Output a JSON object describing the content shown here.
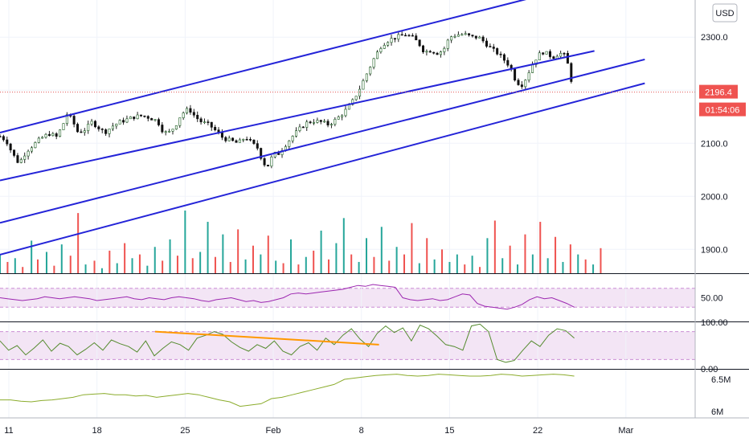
{
  "currency_label": "USD",
  "chart_data": [
    {
      "type": "line",
      "name": "price-pane",
      "y_unit": "USD",
      "ylim": [
        1855,
        2370
      ],
      "y_ticks": [
        "2300.0",
        "2200.0",
        "2100.0",
        "2000.0",
        "1900.0"
      ],
      "y_tick_values": [
        2300,
        2200,
        2100,
        2000,
        1900
      ],
      "last_price_label": "2196.4",
      "last_price": 2196.4,
      "countdown_label": "01:54:06",
      "x_ticks": [
        "11",
        "18",
        "25",
        "Feb",
        "8",
        "15",
        "22",
        "Mar"
      ],
      "x_tick_days": [
        11,
        18,
        25,
        32,
        39,
        46,
        53,
        60
      ],
      "x_days_range": [
        10.3,
        65.5
      ],
      "price_path": [
        [
          10.3,
          2113
        ],
        [
          10.8,
          2105
        ],
        [
          11.3,
          2080
        ],
        [
          11.8,
          2062
        ],
        [
          12.4,
          2085
        ],
        [
          13.0,
          2098
        ],
        [
          13.6,
          2110
        ],
        [
          14.2,
          2118
        ],
        [
          14.8,
          2112
        ],
        [
          15.3,
          2135
        ],
        [
          15.6,
          2155
        ],
        [
          16.0,
          2145
        ],
        [
          16.5,
          2120
        ],
        [
          17.0,
          2125
        ],
        [
          17.6,
          2140
        ],
        [
          18.1,
          2130
        ],
        [
          18.6,
          2120
        ],
        [
          19.2,
          2132
        ],
        [
          19.8,
          2140
        ],
        [
          20.4,
          2145
        ],
        [
          21.0,
          2150
        ],
        [
          21.6,
          2152
        ],
        [
          22.2,
          2148
        ],
        [
          22.8,
          2142
        ],
        [
          23.3,
          2120
        ],
        [
          23.7,
          2120
        ],
        [
          24.2,
          2132
        ],
        [
          24.7,
          2155
        ],
        [
          25.3,
          2165
        ],
        [
          25.8,
          2150
        ],
        [
          26.3,
          2140
        ],
        [
          26.9,
          2135
        ],
        [
          27.5,
          2122
        ],
        [
          28.0,
          2110
        ],
        [
          28.6,
          2105
        ],
        [
          29.2,
          2100
        ],
        [
          29.8,
          2112
        ],
        [
          30.3,
          2100
        ],
        [
          30.8,
          2090
        ],
        [
          31.2,
          2062
        ],
        [
          31.6,
          2058
        ],
        [
          32.0,
          2080
        ],
        [
          32.4,
          2080
        ],
        [
          32.8,
          2092
        ],
        [
          33.4,
          2110
        ],
        [
          34.0,
          2125
        ],
        [
          34.6,
          2138
        ],
        [
          35.2,
          2142
        ],
        [
          35.8,
          2140
        ],
        [
          36.4,
          2135
        ],
        [
          37.0,
          2145
        ],
        [
          37.6,
          2158
        ],
        [
          38.2,
          2175
        ],
        [
          38.8,
          2200
        ],
        [
          39.4,
          2230
        ],
        [
          40.0,
          2260
        ],
        [
          40.6,
          2285
        ],
        [
          41.2,
          2295
        ],
        [
          41.8,
          2300
        ],
        [
          42.5,
          2305
        ],
        [
          43.0,
          2300
        ],
        [
          43.5,
          2290
        ],
        [
          44.0,
          2272
        ],
        [
          44.5,
          2275
        ],
        [
          45.0,
          2270
        ],
        [
          45.5,
          2275
        ],
        [
          46.0,
          2300
        ],
        [
          46.6,
          2305
        ],
        [
          47.2,
          2305
        ],
        [
          47.8,
          2300
        ],
        [
          48.3,
          2300
        ],
        [
          48.8,
          2290
        ],
        [
          49.3,
          2278
        ],
        [
          49.8,
          2270
        ],
        [
          50.3,
          2258
        ],
        [
          50.8,
          2245
        ],
        [
          51.3,
          2215
        ],
        [
          51.8,
          2210
        ],
        [
          52.2,
          2230
        ],
        [
          52.6,
          2250
        ],
        [
          53.0,
          2265
        ],
        [
          53.4,
          2272
        ],
        [
          53.8,
          2268
        ],
        [
          54.2,
          2262
        ],
        [
          54.6,
          2268
        ],
        [
          55.0,
          2270
        ],
        [
          55.3,
          2258
        ],
        [
          55.6,
          2225
        ],
        [
          55.9,
          2196
        ]
      ],
      "candle_width_days": 0.28,
      "channel_lines": [
        {
          "p1": [
            10.3,
            2120
          ],
          "p2": [
            53.5,
            2380
          ]
        },
        {
          "p1": [
            10.3,
            2030
          ],
          "p2": [
            57.5,
            2274
          ]
        },
        {
          "p1": [
            10.3,
            1950
          ],
          "p2": [
            61.5,
            2258
          ]
        },
        {
          "p1": [
            10.3,
            1890
          ],
          "p2": [
            61.5,
            2213
          ]
        }
      ],
      "channel_color": "#2424d8",
      "price_line_color": "#e05555"
    },
    {
      "type": "bar",
      "name": "volume-pane",
      "volume_max": 100,
      "volume_bars": [
        [
          10.3,
          30,
          "up"
        ],
        [
          10.9,
          18,
          "down"
        ],
        [
          11.5,
          24,
          "up"
        ],
        [
          12.1,
          10,
          "down"
        ],
        [
          12.8,
          52,
          "up"
        ],
        [
          13.3,
          22,
          "down"
        ],
        [
          14.0,
          34,
          "up"
        ],
        [
          14.6,
          12,
          "down"
        ],
        [
          15.2,
          46,
          "up"
        ],
        [
          15.9,
          28,
          "down"
        ],
        [
          16.5,
          96,
          "down"
        ],
        [
          17.1,
          14,
          "up"
        ],
        [
          17.8,
          20,
          "down"
        ],
        [
          18.4,
          8,
          "up"
        ],
        [
          19.0,
          36,
          "down"
        ],
        [
          19.6,
          16,
          "up"
        ],
        [
          20.2,
          48,
          "down"
        ],
        [
          20.8,
          24,
          "up"
        ],
        [
          21.4,
          30,
          "down"
        ],
        [
          22.0,
          12,
          "up"
        ],
        [
          22.6,
          42,
          "up"
        ],
        [
          23.2,
          20,
          "down"
        ],
        [
          23.8,
          54,
          "up"
        ],
        [
          24.4,
          28,
          "down"
        ],
        [
          25.0,
          100,
          "up"
        ],
        [
          25.6,
          24,
          "down"
        ],
        [
          26.2,
          34,
          "up"
        ],
        [
          26.8,
          82,
          "up"
        ],
        [
          27.4,
          26,
          "down"
        ],
        [
          28.0,
          62,
          "up"
        ],
        [
          28.6,
          18,
          "down"
        ],
        [
          29.2,
          70,
          "down"
        ],
        [
          29.8,
          22,
          "up"
        ],
        [
          30.4,
          44,
          "down"
        ],
        [
          31.0,
          30,
          "up"
        ],
        [
          31.6,
          60,
          "down"
        ],
        [
          32.2,
          20,
          "up"
        ],
        [
          32.8,
          16,
          "down"
        ],
        [
          33.4,
          54,
          "up"
        ],
        [
          34.0,
          14,
          "down"
        ],
        [
          34.6,
          26,
          "up"
        ],
        [
          35.2,
          36,
          "down"
        ],
        [
          35.8,
          68,
          "up"
        ],
        [
          36.4,
          22,
          "down"
        ],
        [
          37.0,
          48,
          "up"
        ],
        [
          37.6,
          88,
          "up"
        ],
        [
          38.2,
          30,
          "down"
        ],
        [
          38.8,
          18,
          "up"
        ],
        [
          39.4,
          56,
          "up"
        ],
        [
          40.0,
          26,
          "down"
        ],
        [
          40.6,
          74,
          "up"
        ],
        [
          41.2,
          20,
          "down"
        ],
        [
          41.8,
          42,
          "up"
        ],
        [
          42.4,
          30,
          "down"
        ],
        [
          43.0,
          80,
          "down"
        ],
        [
          43.6,
          16,
          "up"
        ],
        [
          44.2,
          56,
          "down"
        ],
        [
          44.8,
          22,
          "up"
        ],
        [
          45.4,
          38,
          "down"
        ],
        [
          46.0,
          18,
          "up"
        ],
        [
          46.6,
          30,
          "up"
        ],
        [
          47.2,
          14,
          "down"
        ],
        [
          47.8,
          28,
          "up"
        ],
        [
          48.4,
          10,
          "down"
        ],
        [
          49.0,
          56,
          "up"
        ],
        [
          49.6,
          84,
          "down"
        ],
        [
          50.2,
          24,
          "up"
        ],
        [
          50.8,
          44,
          "down"
        ],
        [
          51.4,
          14,
          "up"
        ],
        [
          52.0,
          62,
          "down"
        ],
        [
          52.6,
          30,
          "up"
        ],
        [
          53.2,
          82,
          "down"
        ],
        [
          53.8,
          24,
          "up"
        ],
        [
          54.4,
          58,
          "down"
        ],
        [
          55.0,
          18,
          "up"
        ],
        [
          55.6,
          46,
          "down"
        ],
        [
          56.2,
          30,
          "up"
        ],
        [
          56.8,
          22,
          "down"
        ],
        [
          57.4,
          14,
          "up"
        ],
        [
          58.0,
          40,
          "down"
        ]
      ],
      "up_color": "#26a69a",
      "down_color": "#ef5350"
    },
    {
      "type": "line",
      "name": "rsi-pane",
      "y_tick": "50.00",
      "ylim": [
        0,
        100
      ],
      "band": [
        30,
        70
      ],
      "values": [
        50,
        48,
        46,
        44,
        46,
        48,
        52,
        50,
        48,
        50,
        52,
        50,
        48,
        44,
        46,
        48,
        50,
        52,
        48,
        46,
        50,
        48,
        46,
        50,
        52,
        50,
        48,
        44,
        42,
        46,
        48,
        50,
        46,
        42,
        44,
        40,
        42,
        46,
        50,
        58,
        60,
        58,
        60,
        62,
        64,
        66,
        68,
        72,
        76,
        74,
        78,
        76,
        74,
        72,
        50,
        46,
        44,
        46,
        48,
        44,
        46,
        52,
        58,
        56,
        38,
        32,
        30,
        28,
        26,
        30,
        36,
        46,
        52,
        48,
        50,
        44,
        38,
        30
      ],
      "color": "#9c27b0"
    },
    {
      "type": "line",
      "name": "stoch-pane",
      "y_ticks": [
        "100.00",
        "0.00"
      ],
      "ylim": [
        0,
        100
      ],
      "band": [
        20,
        80
      ],
      "values": [
        60,
        40,
        50,
        30,
        45,
        62,
        38,
        55,
        48,
        30,
        42,
        56,
        40,
        62,
        54,
        48,
        36,
        60,
        28,
        44,
        58,
        52,
        40,
        66,
        72,
        80,
        74,
        58,
        46,
        38,
        52,
        44,
        60,
        38,
        30,
        48,
        56,
        40,
        66,
        52,
        72,
        86,
        64,
        48,
        76,
        92,
        78,
        88,
        60,
        94,
        86,
        70,
        52,
        48,
        40,
        92,
        96,
        80,
        20,
        14,
        18,
        40,
        60,
        48,
        72,
        86,
        82,
        66
      ],
      "trendline": {
        "p1": [
          0.27,
          80
        ],
        "p2": [
          0.66,
          52
        ],
        "color": "#ff9800"
      },
      "color": "#558b2f"
    },
    {
      "type": "line",
      "name": "obv-pane",
      "y_ticks": [
        "6.5M",
        "6M"
      ],
      "y_tick_values": [
        6.5,
        6.0
      ],
      "ylim": [
        5.9,
        6.65
      ],
      "values": [
        6.18,
        6.18,
        6.16,
        6.15,
        6.17,
        6.18,
        6.2,
        6.22,
        6.26,
        6.27,
        6.28,
        6.26,
        6.26,
        6.24,
        6.25,
        6.22,
        6.24,
        6.26,
        6.28,
        6.26,
        6.22,
        6.18,
        6.15,
        6.08,
        6.1,
        6.12,
        6.2,
        6.22,
        6.26,
        6.3,
        6.34,
        6.38,
        6.42,
        6.5,
        6.52,
        6.54,
        6.56,
        6.57,
        6.58,
        6.56,
        6.55,
        6.56,
        6.58,
        6.57,
        6.56,
        6.55,
        6.55,
        6.56,
        6.58,
        6.57,
        6.55,
        6.56,
        6.57,
        6.58,
        6.57,
        6.55
      ],
      "color": "#8bac2c"
    }
  ]
}
